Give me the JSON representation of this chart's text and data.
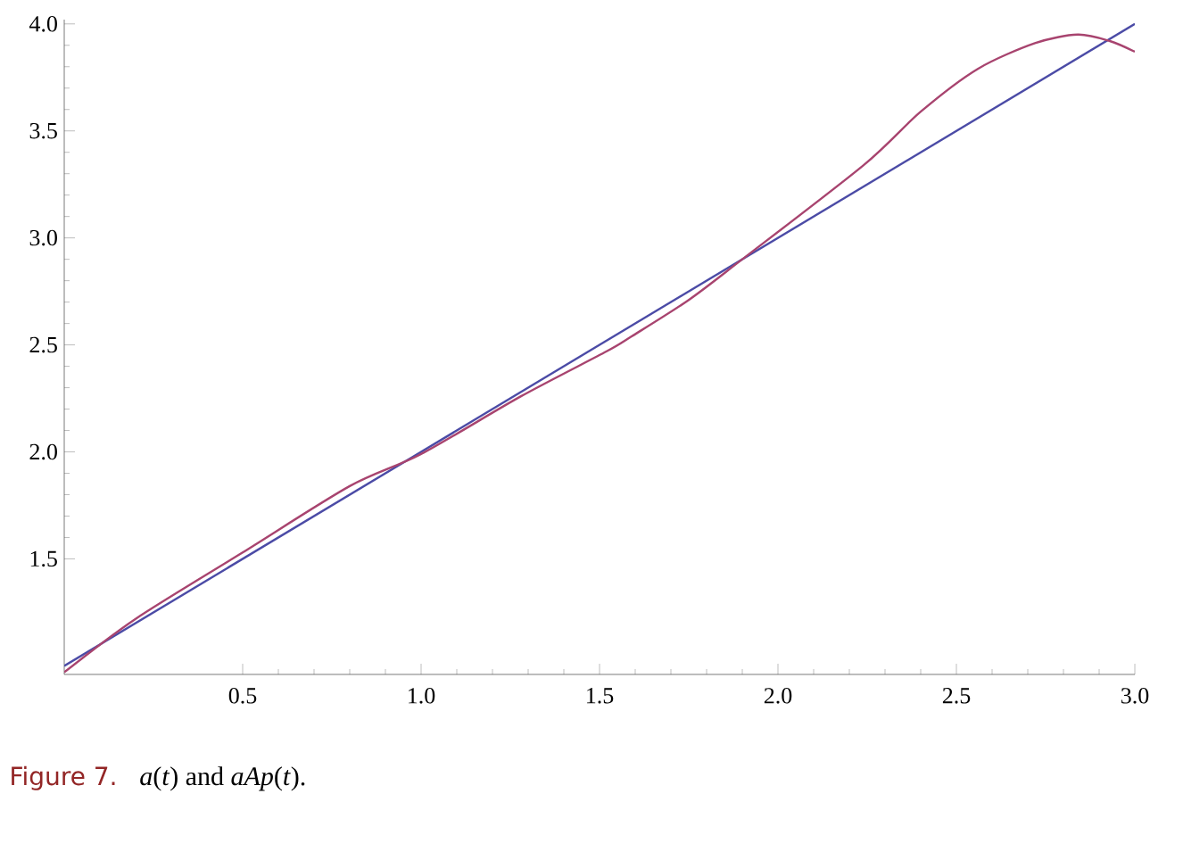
{
  "chart_data": {
    "type": "line",
    "xlim": [
      0,
      3.0
    ],
    "ylim": [
      0.96,
      4.02
    ],
    "xticks": [
      0.5,
      {
        "value": 1,
        "label": "1.0"
      },
      1.5,
      {
        "value": 2,
        "label": "2.0"
      },
      2.5,
      {
        "value": 3,
        "label": "3.0"
      }
    ],
    "yticks": [
      1.5,
      {
        "value": 2,
        "label": "2.0"
      },
      2.5,
      {
        "value": 3,
        "label": "3.0"
      },
      3.5,
      {
        "value": 4,
        "label": "4.0"
      }
    ],
    "series": [
      {
        "color": "#4b4ba6",
        "x": [
          0,
          3.0
        ],
        "values": [
          1.0,
          4.0
        ]
      },
      {
        "color": "#a8446f",
        "x": [
          0,
          0.2,
          0.5,
          0.8,
          1.0,
          1.28,
          1.52,
          1.59,
          1.75,
          1.9,
          2.24,
          2.4,
          2.56,
          2.72,
          2.84,
          2.93,
          3.0
        ],
        "values": [
          0.97,
          1.22,
          1.53,
          1.84,
          1.99,
          2.26,
          2.47,
          2.54,
          2.71,
          2.9,
          3.34,
          3.59,
          3.79,
          3.91,
          3.95,
          3.92,
          3.87
        ]
      }
    ],
    "annotations": [
      "Figure 7.",
      "*a*(*t*) and *aAp*(*t*)."
    ],
    "marker": "none",
    "line_style": "solid"
  }
}
